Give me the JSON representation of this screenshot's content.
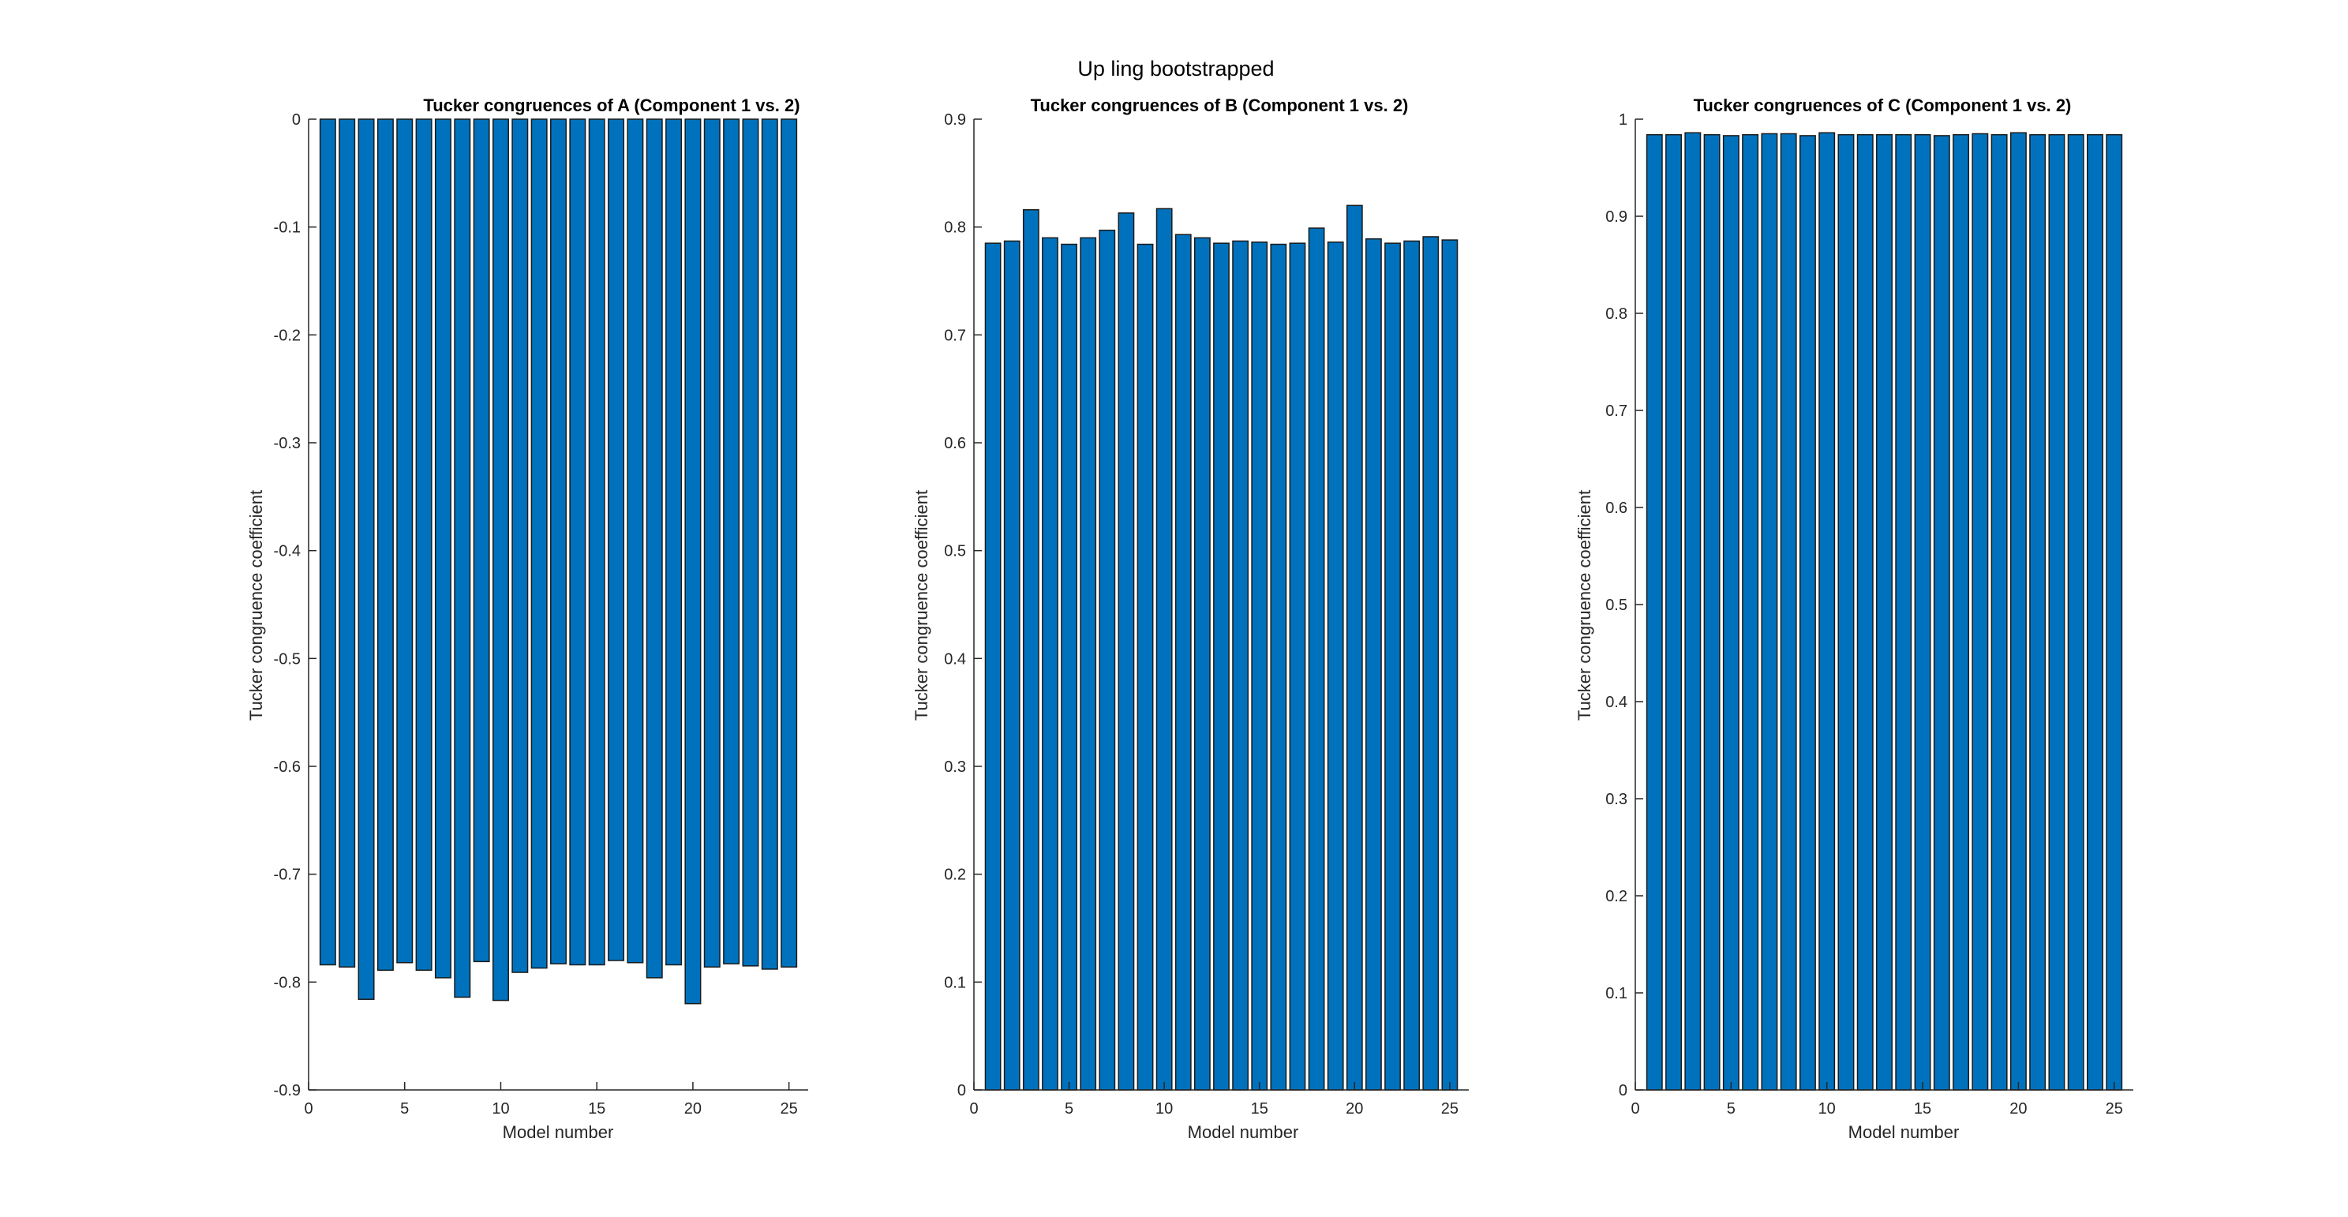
{
  "figure_title": "Up ling bootstrapped",
  "chart_data": [
    {
      "type": "bar",
      "title": "Tucker congruences of A (Component 1 vs. 2)",
      "xlabel": "Model number",
      "ylabel": "Tucker congruence coefficient",
      "xlim": [
        0,
        26
      ],
      "ylim": [
        -0.9,
        0
      ],
      "xticks": [
        0,
        5,
        10,
        15,
        20,
        25
      ],
      "yticks": [
        -0.9,
        -0.8,
        -0.7,
        -0.6,
        -0.5,
        -0.4,
        -0.3,
        -0.2,
        -0.1,
        0
      ],
      "ytick_labels": [
        "-0.9",
        "-0.8",
        "-0.7",
        "-0.6",
        "-0.5",
        "-0.4",
        "-0.3",
        "-0.2",
        "-0.1",
        "0"
      ],
      "x": [
        1,
        2,
        3,
        4,
        5,
        6,
        7,
        8,
        9,
        10,
        11,
        12,
        13,
        14,
        15,
        16,
        17,
        18,
        19,
        20,
        21,
        22,
        23,
        24,
        25
      ],
      "values": [
        -0.784,
        -0.786,
        -0.816,
        -0.789,
        -0.782,
        -0.789,
        -0.796,
        -0.814,
        -0.781,
        -0.817,
        -0.791,
        -0.787,
        -0.783,
        -0.784,
        -0.784,
        -0.78,
        -0.782,
        -0.796,
        -0.784,
        -0.82,
        -0.786,
        -0.783,
        -0.785,
        -0.788,
        -0.786
      ],
      "bar_color": "#0072BD",
      "grid": false
    },
    {
      "type": "bar",
      "title": "Tucker congruences of B (Component 1 vs. 2)",
      "xlabel": "Model number",
      "ylabel": "Tucker congruence coefficient",
      "xlim": [
        0,
        26
      ],
      "ylim": [
        0,
        0.9
      ],
      "xticks": [
        0,
        5,
        10,
        15,
        20,
        25
      ],
      "yticks": [
        0,
        0.1,
        0.2,
        0.3,
        0.4,
        0.5,
        0.6,
        0.7,
        0.8,
        0.9
      ],
      "ytick_labels": [
        "0",
        "0.1",
        "0.2",
        "0.3",
        "0.4",
        "0.5",
        "0.6",
        "0.7",
        "0.8",
        "0.9"
      ],
      "x": [
        1,
        2,
        3,
        4,
        5,
        6,
        7,
        8,
        9,
        10,
        11,
        12,
        13,
        14,
        15,
        16,
        17,
        18,
        19,
        20,
        21,
        22,
        23,
        24,
        25
      ],
      "values": [
        0.785,
        0.787,
        0.816,
        0.79,
        0.784,
        0.79,
        0.797,
        0.813,
        0.784,
        0.817,
        0.793,
        0.79,
        0.785,
        0.787,
        0.786,
        0.784,
        0.785,
        0.799,
        0.786,
        0.82,
        0.789,
        0.785,
        0.787,
        0.791,
        0.788
      ],
      "bar_color": "#0072BD",
      "grid": false
    },
    {
      "type": "bar",
      "title": "Tucker congruences of C (Component 1 vs. 2)",
      "xlabel": "Model number",
      "ylabel": "Tucker congruence coefficient",
      "xlim": [
        0,
        26
      ],
      "ylim": [
        0,
        1
      ],
      "xticks": [
        0,
        5,
        10,
        15,
        20,
        25
      ],
      "yticks": [
        0,
        0.1,
        0.2,
        0.3,
        0.4,
        0.5,
        0.6,
        0.7,
        0.8,
        0.9,
        1
      ],
      "ytick_labels": [
        "0",
        "0.1",
        "0.2",
        "0.3",
        "0.4",
        "0.5",
        "0.6",
        "0.7",
        "0.8",
        "0.9",
        "1"
      ],
      "x": [
        1,
        2,
        3,
        4,
        5,
        6,
        7,
        8,
        9,
        10,
        11,
        12,
        13,
        14,
        15,
        16,
        17,
        18,
        19,
        20,
        21,
        22,
        23,
        24,
        25
      ],
      "values": [
        0.984,
        0.984,
        0.986,
        0.984,
        0.983,
        0.984,
        0.985,
        0.985,
        0.983,
        0.986,
        0.984,
        0.984,
        0.984,
        0.984,
        0.984,
        0.983,
        0.984,
        0.985,
        0.984,
        0.986,
        0.984,
        0.984,
        0.984,
        0.984,
        0.984
      ],
      "bar_color": "#0072BD",
      "grid": false
    }
  ]
}
